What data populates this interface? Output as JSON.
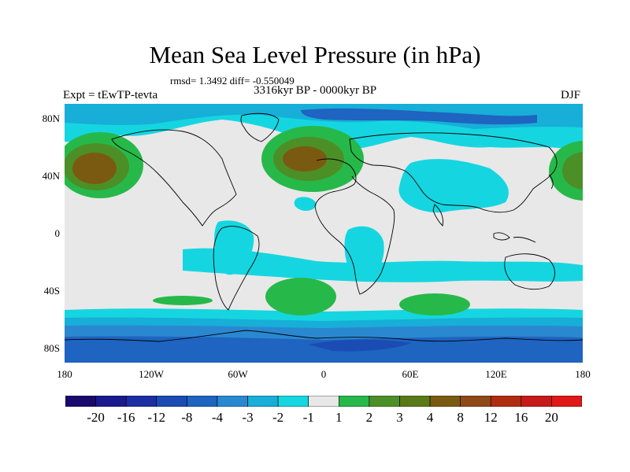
{
  "title": "Mean Sea Level Pressure (in hPa)",
  "stats": "rmsd= 1.3492 diff= -0.550049",
  "expt_label": "Expt = tEwTP-tevta",
  "period": "3316kyr BP - 0000kyr BP",
  "season": "DJF",
  "lat_labels": [
    "80N",
    "40N",
    "0",
    "40S",
    "80S"
  ],
  "lon_labels": [
    "180",
    "120W",
    "60W",
    "0",
    "60E",
    "120E",
    "180"
  ],
  "colorbar": {
    "labels": [
      "-20",
      "-16",
      "-12",
      "-8",
      "-4",
      "-3",
      "-2",
      "-1",
      "1",
      "2",
      "3",
      "4",
      "8",
      "12",
      "16",
      "20"
    ],
    "colors": [
      "#1a0a6e",
      "#1a1a8e",
      "#1b2fa3",
      "#1a4cb3",
      "#1e64c0",
      "#2a88d0",
      "#17aed8",
      "#15d6e0",
      "#e8e8e8",
      "#27b84a",
      "#4d8f27",
      "#5a7a18",
      "#7a5a10",
      "#8f4a18",
      "#b02c10",
      "#c81a1a",
      "#e01818"
    ]
  }
}
